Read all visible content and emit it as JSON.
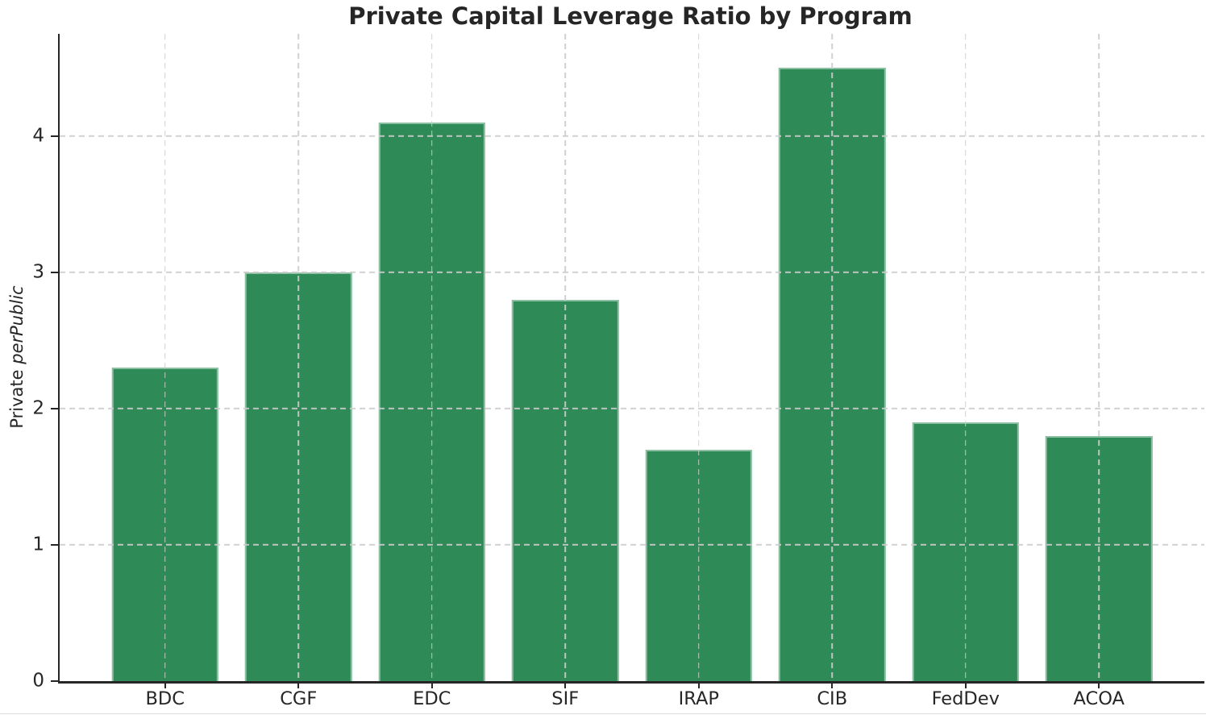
{
  "chart_data": {
    "type": "bar",
    "title": "Private Capital Leverage Ratio by Program",
    "categories": [
      "BDC",
      "CGF",
      "EDC",
      "SIF",
      "IRAP",
      "CIB",
      "FedDev",
      "ACOA"
    ],
    "values": [
      2.3,
      3.0,
      4.1,
      2.8,
      1.7,
      4.5,
      1.9,
      1.8
    ],
    "xlabel": "",
    "ylabel": "Private perPublic",
    "ylabel_regular": "Private ",
    "ylabel_italic": "perPublic",
    "yticks": [
      0,
      1,
      2,
      3,
      4
    ],
    "ylim": [
      0,
      4.75
    ],
    "grid": true,
    "grid_style": "dashed",
    "legend": "none",
    "bar_color": "#2e8b57",
    "bar_edge_color": "rgba(255,255,255,0.45)",
    "grid_color": "#cccccc",
    "axis_color": "#262626",
    "bar_width_ratio": 0.8,
    "x_margin_ratio": 0.79
  }
}
